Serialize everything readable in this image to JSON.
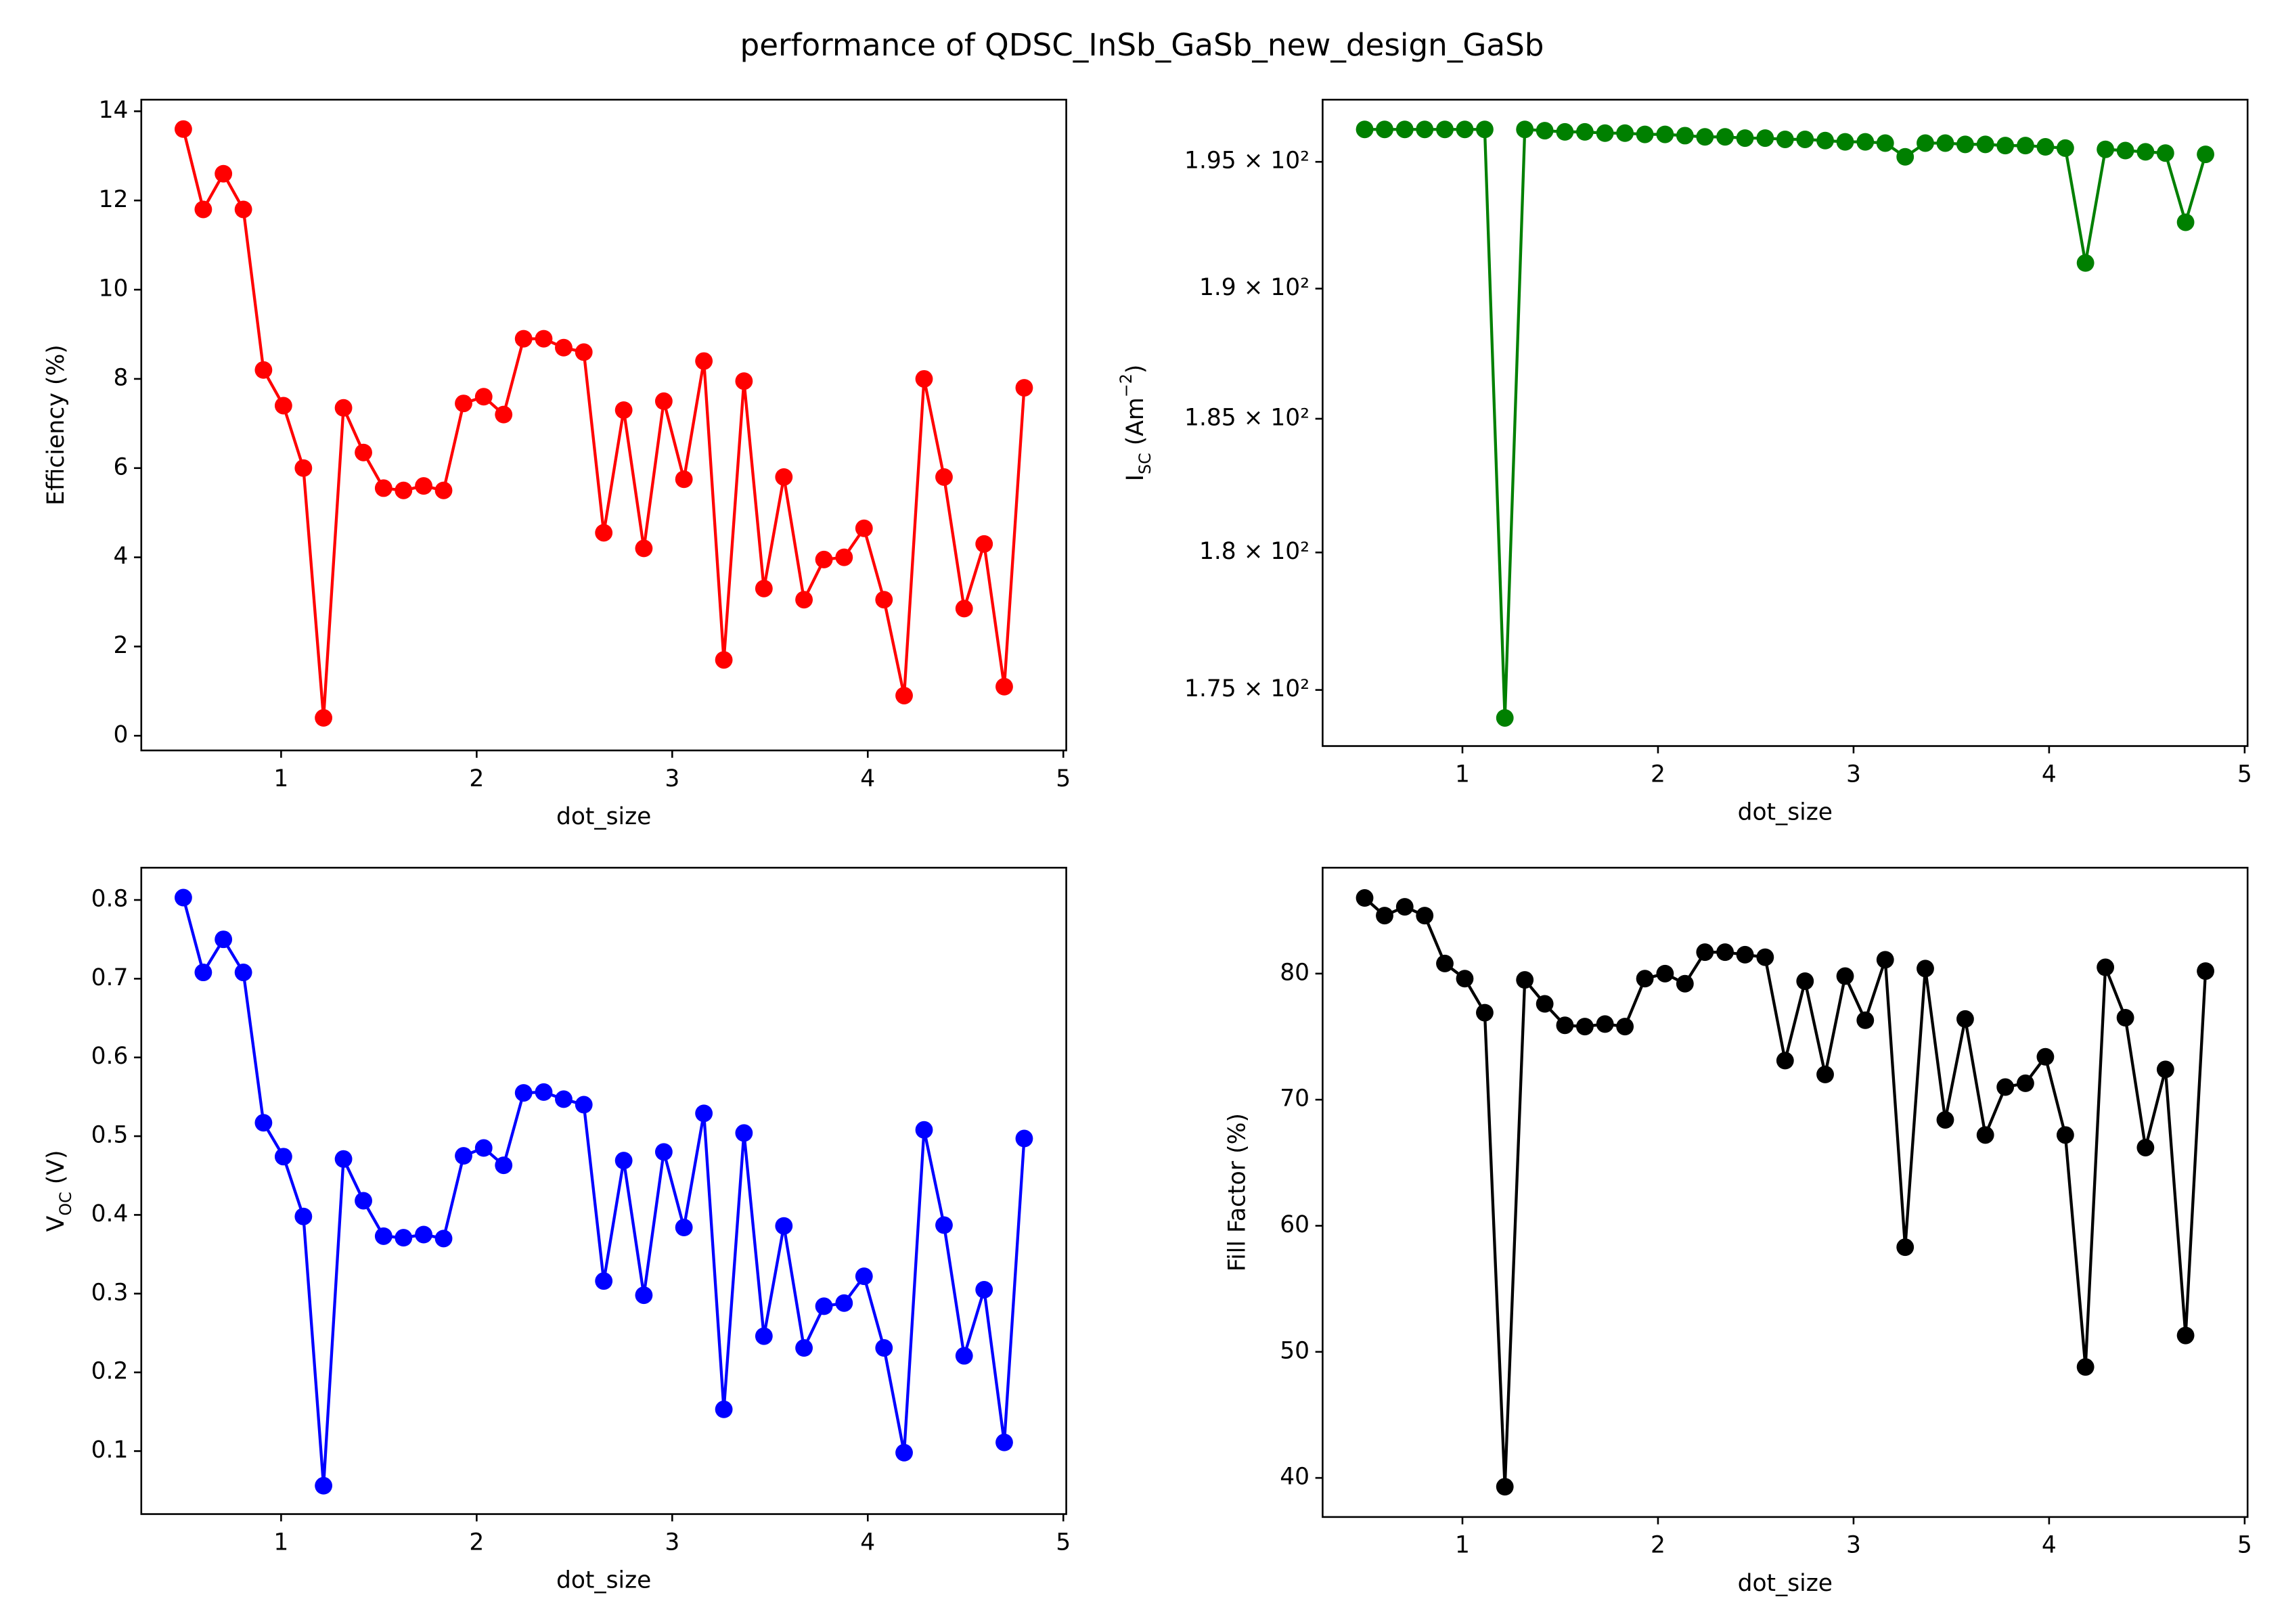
{
  "suptitle": "performance of QDSC_InSb_GaSb_new_design_GaSb",
  "chart_data": [
    {
      "type": "line",
      "xlabel": "dot_size",
      "ylabel_parts": [
        {
          "text": "Efficiency (%)"
        }
      ],
      "color": "#ff0000",
      "marker": true,
      "x": [
        0.5,
        0.602,
        0.705,
        0.807,
        0.91,
        1.012,
        1.114,
        1.217,
        1.319,
        1.421,
        1.524,
        1.626,
        1.729,
        1.831,
        1.933,
        2.036,
        2.138,
        2.24,
        2.343,
        2.445,
        2.548,
        2.65,
        2.752,
        2.855,
        2.957,
        3.06,
        3.162,
        3.264,
        3.367,
        3.469,
        3.571,
        3.674,
        3.776,
        3.879,
        3.981,
        4.083,
        4.186,
        4.288,
        4.39,
        4.493,
        4.595,
        4.698,
        4.8
      ],
      "values": [
        13.6,
        11.8,
        12.6,
        11.8,
        8.2,
        7.4,
        6.0,
        0.4,
        7.35,
        6.35,
        5.55,
        5.5,
        5.6,
        5.5,
        7.45,
        7.6,
        7.2,
        8.9,
        8.9,
        8.7,
        8.6,
        4.55,
        7.3,
        4.2,
        7.5,
        5.75,
        8.4,
        1.7,
        7.95,
        3.3,
        5.8,
        3.05,
        3.95,
        4.0,
        4.65,
        3.05,
        0.9,
        8.0,
        5.8,
        2.85,
        4.3,
        1.1,
        7.8
      ],
      "xlim": [
        0.285,
        5.015
      ],
      "xticks": [
        1,
        2,
        3,
        4,
        5
      ],
      "ylim": [
        -0.33,
        14.26
      ],
      "yticks": [
        0,
        2,
        4,
        6,
        8,
        10,
        12,
        14
      ]
    },
    {
      "type": "line",
      "xlabel": "dot_size",
      "ylabel_parts": [
        {
          "text": "I"
        },
        {
          "text": "SC",
          "shift": "sub"
        },
        {
          "text": " (Am"
        },
        {
          "text": "−2",
          "shift": "super"
        },
        {
          "text": ")"
        }
      ],
      "color": "#008000",
      "marker": true,
      "log_scale": true,
      "x": [
        0.5,
        0.602,
        0.705,
        0.807,
        0.91,
        1.012,
        1.114,
        1.217,
        1.319,
        1.421,
        1.524,
        1.626,
        1.729,
        1.831,
        1.933,
        2.036,
        2.138,
        2.24,
        2.343,
        2.445,
        2.548,
        2.65,
        2.752,
        2.855,
        2.957,
        3.06,
        3.162,
        3.264,
        3.367,
        3.469,
        3.571,
        3.674,
        3.776,
        3.879,
        3.981,
        4.083,
        4.186,
        4.288,
        4.39,
        4.493,
        4.595,
        4.698,
        4.8
      ],
      "values": [
        196.3,
        196.3,
        196.3,
        196.3,
        196.3,
        196.3,
        196.3,
        174.0,
        196.3,
        196.25,
        196.2,
        196.2,
        196.15,
        196.15,
        196.1,
        196.1,
        196.05,
        196.0,
        196.0,
        195.95,
        195.95,
        195.9,
        195.9,
        195.85,
        195.8,
        195.8,
        195.75,
        195.2,
        195.75,
        195.75,
        195.7,
        195.7,
        195.65,
        195.65,
        195.6,
        195.55,
        191.0,
        195.5,
        195.45,
        195.4,
        195.35,
        192.6,
        195.3
      ],
      "xlim": [
        0.285,
        5.015
      ],
      "xticks": [
        1,
        2,
        3,
        4,
        5
      ],
      "ylim": [
        173.0,
        197.5
      ],
      "yticks": [
        {
          "value": 175,
          "label": "1.75 × 10²"
        },
        {
          "value": 180,
          "label": "1.8 × 10²"
        },
        {
          "value": 185,
          "label": "1.85 × 10²"
        },
        {
          "value": 190,
          "label": "1.9 × 10²"
        },
        {
          "value": 195,
          "label": "1.95 × 10²"
        }
      ]
    },
    {
      "type": "line",
      "xlabel": "dot_size",
      "ylabel_parts": [
        {
          "text": "V"
        },
        {
          "text": "OC",
          "shift": "sub"
        },
        {
          "text": " (V)"
        }
      ],
      "color": "#0000ff",
      "marker": true,
      "x": [
        0.5,
        0.602,
        0.705,
        0.807,
        0.91,
        1.012,
        1.114,
        1.217,
        1.319,
        1.421,
        1.524,
        1.626,
        1.729,
        1.831,
        1.933,
        2.036,
        2.138,
        2.24,
        2.343,
        2.445,
        2.548,
        2.65,
        2.752,
        2.855,
        2.957,
        3.06,
        3.162,
        3.264,
        3.367,
        3.469,
        3.571,
        3.674,
        3.776,
        3.879,
        3.981,
        4.083,
        4.186,
        4.288,
        4.39,
        4.493,
        4.595,
        4.698,
        4.8
      ],
      "values": [
        0.803,
        0.708,
        0.75,
        0.708,
        0.517,
        0.474,
        0.398,
        0.056,
        0.471,
        0.418,
        0.373,
        0.371,
        0.375,
        0.37,
        0.475,
        0.485,
        0.463,
        0.555,
        0.556,
        0.547,
        0.54,
        0.316,
        0.469,
        0.298,
        0.48,
        0.384,
        0.529,
        0.153,
        0.504,
        0.246,
        0.386,
        0.231,
        0.284,
        0.288,
        0.322,
        0.231,
        0.098,
        0.508,
        0.387,
        0.221,
        0.305,
        0.111,
        0.497
      ],
      "xlim": [
        0.285,
        5.015
      ],
      "xticks": [
        1,
        2,
        3,
        4,
        5
      ],
      "ylim": [
        0.02,
        0.841
      ],
      "yticks": [
        0.1,
        0.2,
        0.3,
        0.4,
        0.5,
        0.6,
        0.7,
        0.8
      ]
    },
    {
      "type": "line",
      "xlabel": "dot_size",
      "ylabel_parts": [
        {
          "text": "Fill Factor (%)"
        }
      ],
      "color": "#000000",
      "marker": true,
      "x": [
        0.5,
        0.602,
        0.705,
        0.807,
        0.91,
        1.012,
        1.114,
        1.217,
        1.319,
        1.421,
        1.524,
        1.626,
        1.729,
        1.831,
        1.933,
        2.036,
        2.138,
        2.24,
        2.343,
        2.445,
        2.548,
        2.65,
        2.752,
        2.855,
        2.957,
        3.06,
        3.162,
        3.264,
        3.367,
        3.469,
        3.571,
        3.674,
        3.776,
        3.879,
        3.981,
        4.083,
        4.186,
        4.288,
        4.39,
        4.493,
        4.595,
        4.698,
        4.8
      ],
      "values": [
        86.0,
        84.6,
        85.3,
        84.6,
        80.8,
        79.6,
        76.9,
        39.3,
        79.5,
        77.6,
        75.9,
        75.8,
        76.0,
        75.8,
        79.6,
        80.0,
        79.2,
        81.7,
        81.7,
        81.5,
        81.3,
        73.1,
        79.4,
        72.0,
        79.8,
        76.3,
        81.1,
        58.3,
        80.4,
        68.4,
        76.4,
        67.2,
        71.0,
        71.3,
        73.4,
        67.2,
        48.8,
        80.5,
        76.5,
        66.2,
        72.4,
        51.3,
        80.2
      ],
      "xlim": [
        0.285,
        5.015
      ],
      "xticks": [
        1,
        2,
        3,
        4,
        5
      ],
      "ylim": [
        36.9,
        88.4
      ],
      "yticks": [
        40,
        50,
        60,
        70,
        80
      ]
    }
  ]
}
